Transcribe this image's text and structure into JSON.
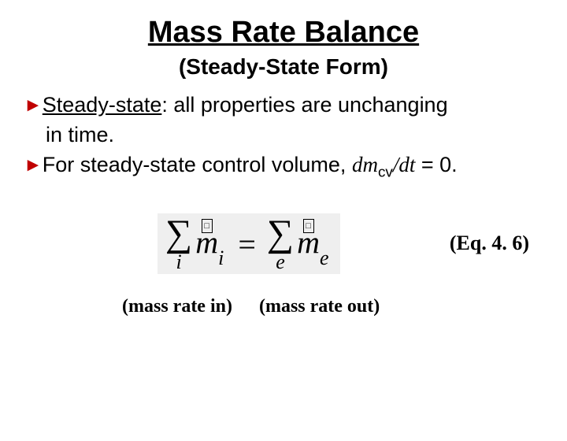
{
  "title": "Mass Rate Balance",
  "subtitle": "(Steady-State Form)",
  "bullets": {
    "b1_lead": "Steady-state",
    "b1_rest": ": all properties are unchanging",
    "b1_cont": "in time.",
    "b2_a": "For steady-state control volume, ",
    "b2_dm": "dm",
    "b2_cv": "cv",
    "b2_slash": "/",
    "b2_dt": "dt",
    "b2_eq": " = 0",
    "b2_dot": "."
  },
  "equation": {
    "sigma": "∑",
    "idx_i": "i",
    "idx_e": "e",
    "m": "m",
    "sub_i": "i",
    "sub_e": "e",
    "equals": "=",
    "dotbox": "□",
    "label": "(Eq. 4. 6)"
  },
  "captions": {
    "in": "(mass rate in)",
    "out": "(mass rate out)"
  },
  "colors": {
    "bullet": "#c00000",
    "bg": "#ffffff",
    "eq_bg": "#efefef",
    "text": "#000000"
  }
}
